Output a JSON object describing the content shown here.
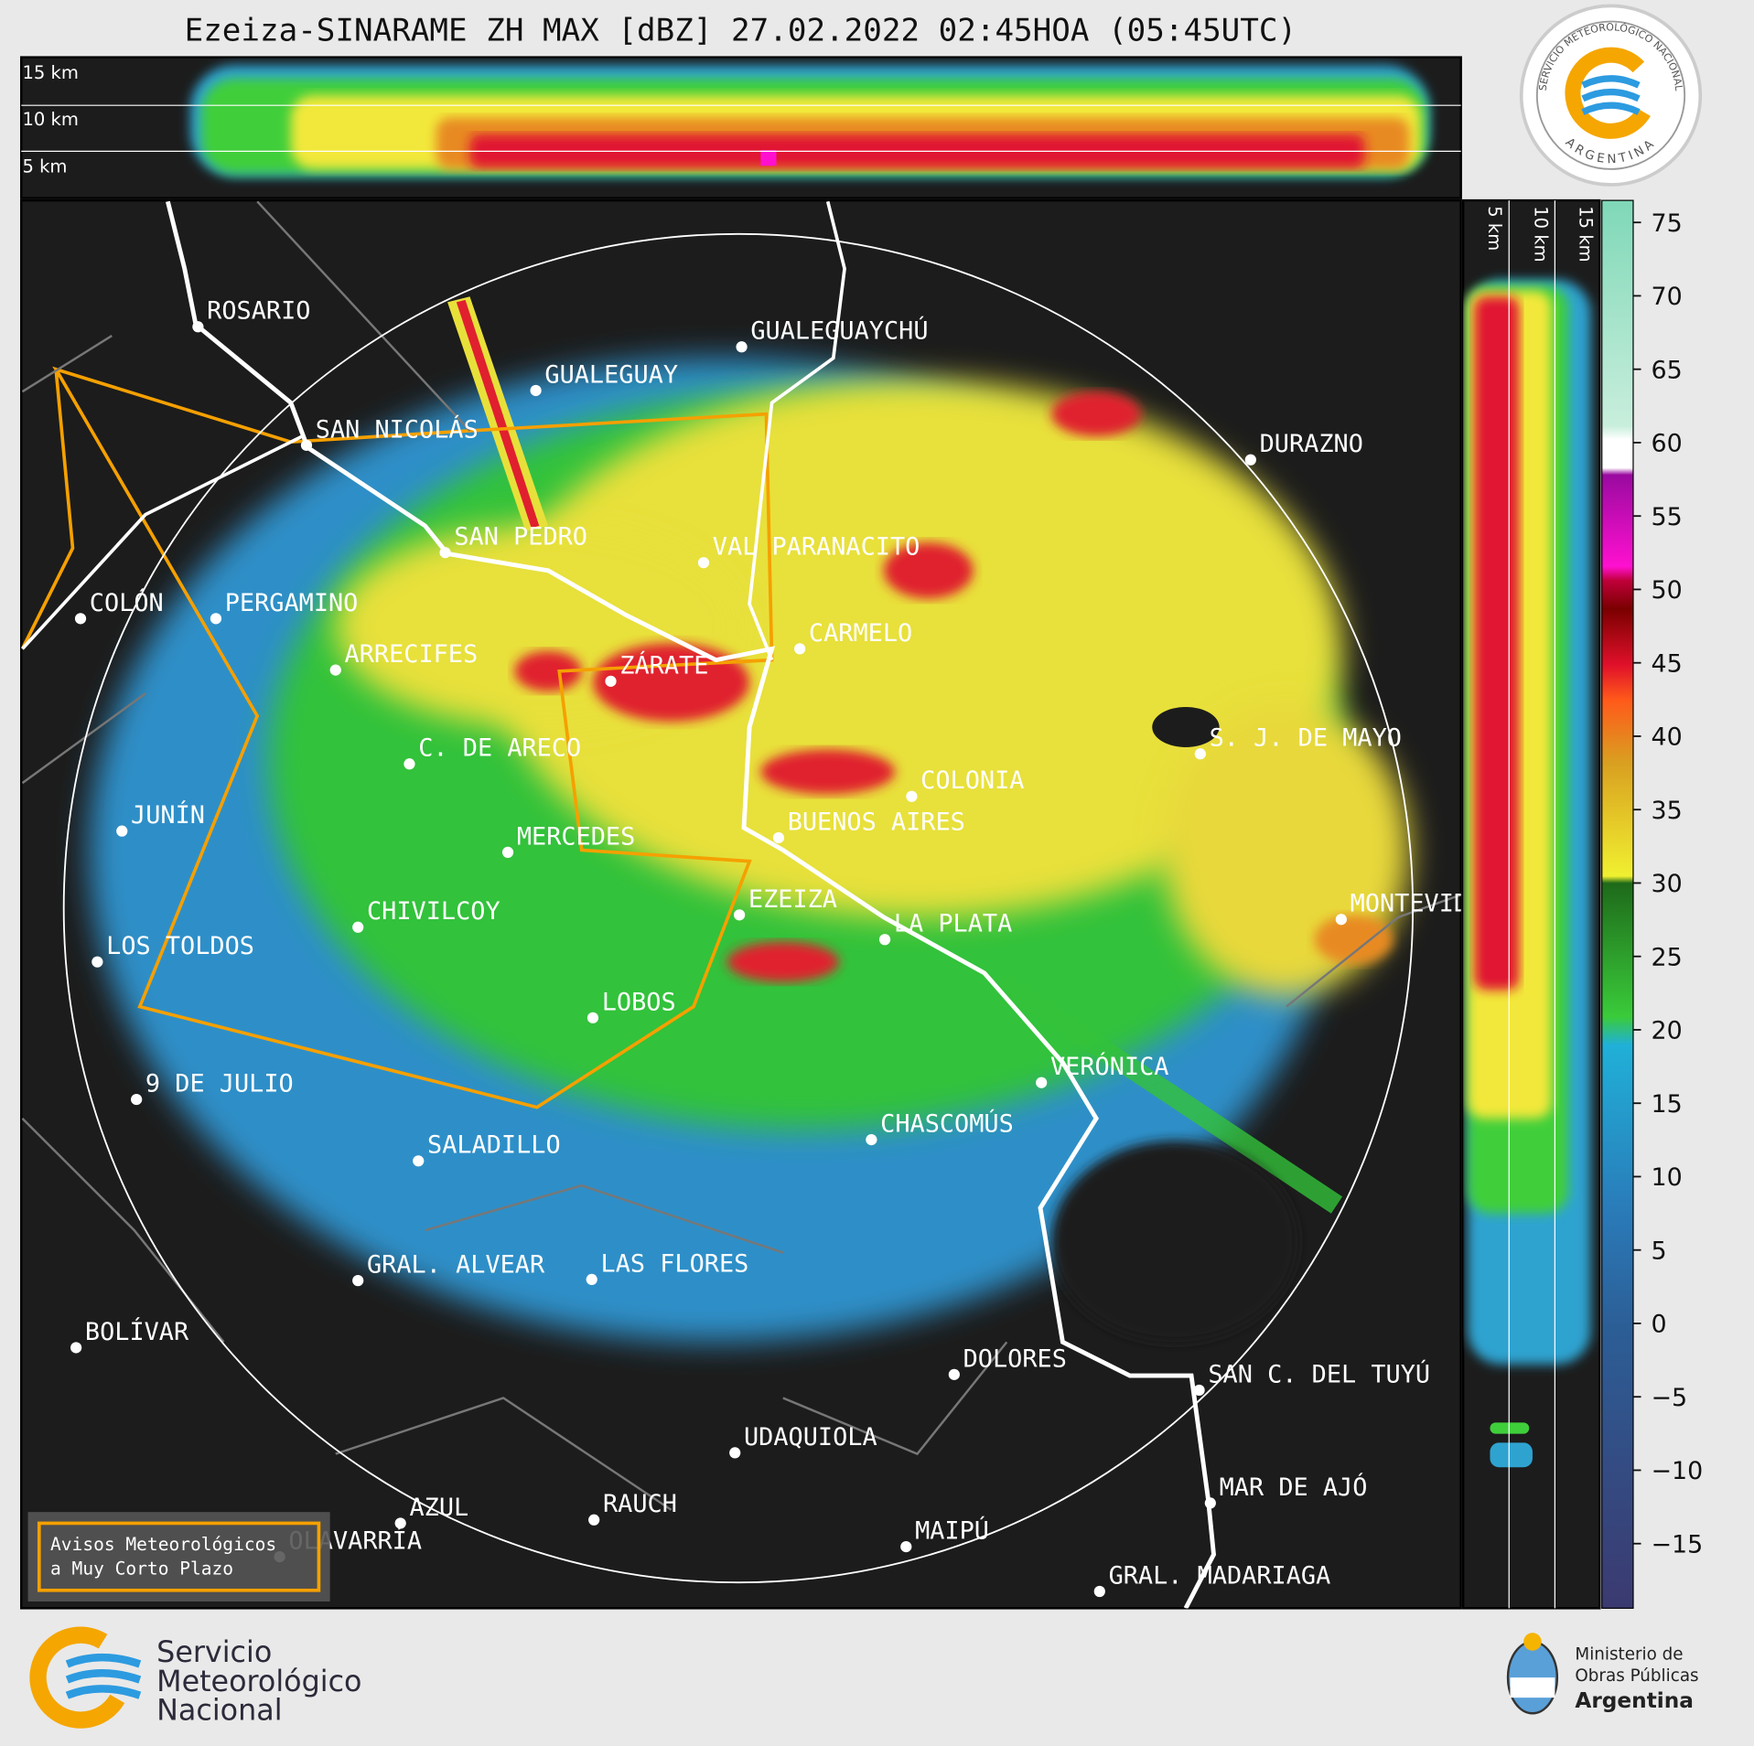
{
  "title": "Ezeiza-SINARAME ZH MAX [dBZ] 27.02.2022 02:45HOA (05:45UTC)",
  "logo_ring": {
    "top": "SERVICIO METEOROLÓGICO NACIONAL",
    "bottom": "ARGENTINA"
  },
  "cross_section_top": {
    "labels": [
      "15 km",
      "10 km",
      "5 km"
    ]
  },
  "cross_section_right": {
    "labels": [
      "5 km",
      "10 km",
      "15 km"
    ]
  },
  "cities": [
    {
      "name": "ROSARIO"
    },
    {
      "name": "GUALEGUAYCHÚ"
    },
    {
      "name": "GUALEGUAY"
    },
    {
      "name": "SAN NICOLÁS"
    },
    {
      "name": "DURAZNO"
    },
    {
      "name": "SAN PEDRO"
    },
    {
      "name": "VAL PARANACITO"
    },
    {
      "name": "COLÓN"
    },
    {
      "name": "PERGAMINO"
    },
    {
      "name": "CARMELO"
    },
    {
      "name": "ARRECIFES"
    },
    {
      "name": "ZÁRATE"
    },
    {
      "name": "S. J. DE MAYO"
    },
    {
      "name": "C. DE ARECO"
    },
    {
      "name": "COLONIA"
    },
    {
      "name": "JUNÍN"
    },
    {
      "name": "BUENOS AIRES"
    },
    {
      "name": "MERCEDES"
    },
    {
      "name": "MONTEVIDEO"
    },
    {
      "name": "EZEIZA"
    },
    {
      "name": "LA PLATA"
    },
    {
      "name": "CHIVILCOY"
    },
    {
      "name": "LOS TOLDOS"
    },
    {
      "name": "LOBOS"
    },
    {
      "name": "VERÓNICA"
    },
    {
      "name": "9 DE JULIO"
    },
    {
      "name": "CHASCOMÚS"
    },
    {
      "name": "SALADILLO"
    },
    {
      "name": "GRAL. ALVEAR"
    },
    {
      "name": "LAS FLORES"
    },
    {
      "name": "BOLÍVAR"
    },
    {
      "name": "DOLORES"
    },
    {
      "name": "SAN C. DEL TUYÚ"
    },
    {
      "name": "UDAQUIOLA"
    },
    {
      "name": "MAR DE AJÓ"
    },
    {
      "name": "RAUCH"
    },
    {
      "name": "AZUL"
    },
    {
      "name": "OLAVARRÍA"
    },
    {
      "name": "MAIPÚ"
    },
    {
      "name": "GRAL. MADARIAGA"
    }
  ],
  "colorbar": {
    "lim": [
      -19.4,
      76.5
    ],
    "ticks": [
      75,
      70,
      65,
      60,
      55,
      50,
      45,
      40,
      35,
      30,
      25,
      20,
      15,
      10,
      5,
      0,
      {
        "value": -5,
        "label": "−5"
      },
      {
        "value": -10,
        "label": "−10"
      },
      {
        "value": -15,
        "label": "−15"
      }
    ]
  },
  "warning_box": {
    "lines": [
      "Avisos Meteorológicos",
      "a Muy Corto Plazo"
    ]
  },
  "footer": {
    "smn": [
      "Servicio",
      "Meteorológico",
      "Nacional"
    ],
    "ministry": [
      "Ministerio de",
      "Obras Públicas",
      "Argentina"
    ]
  }
}
